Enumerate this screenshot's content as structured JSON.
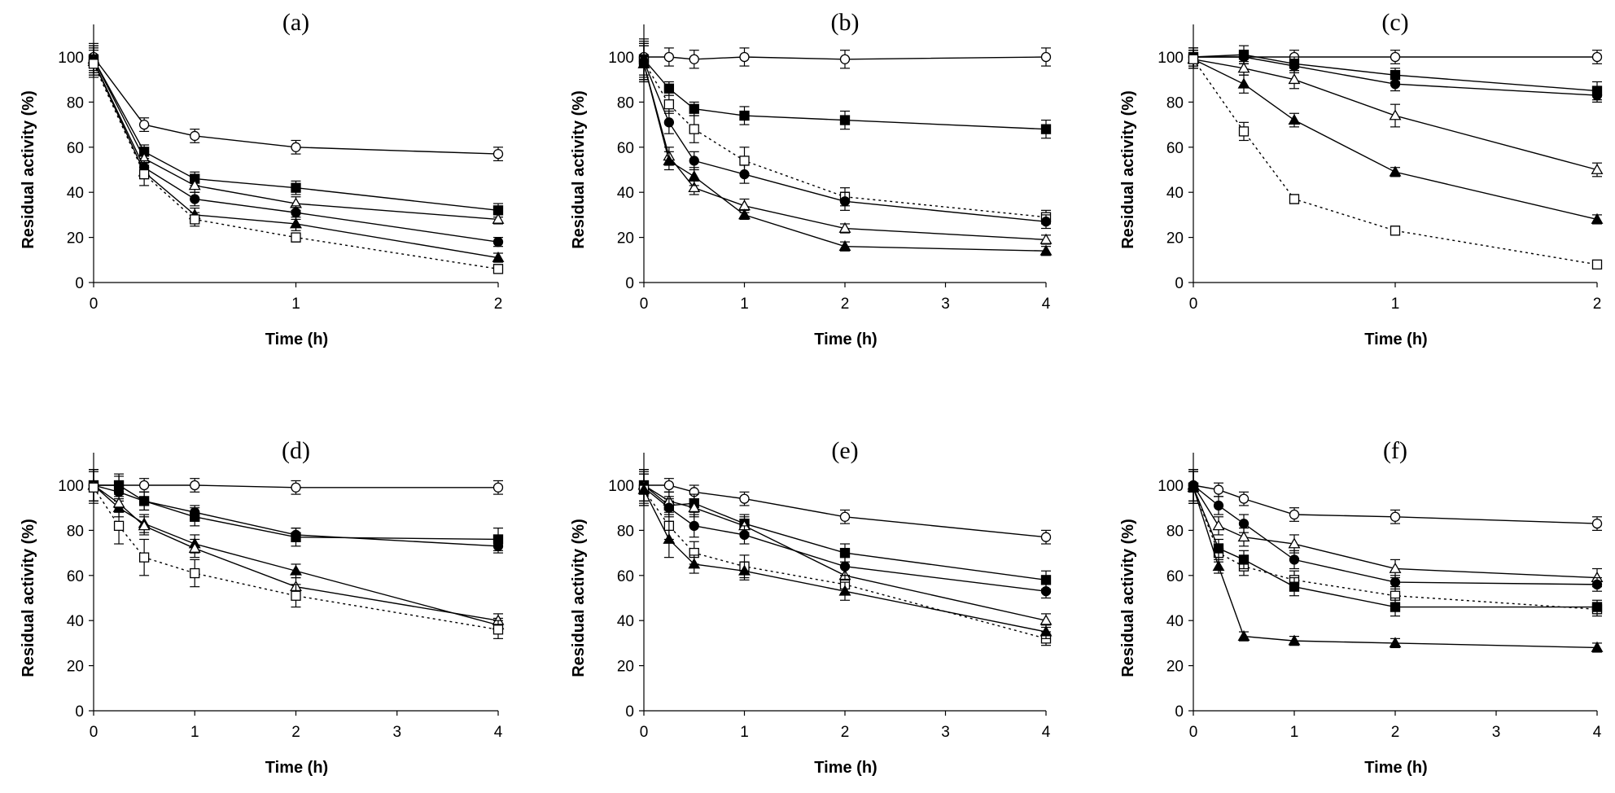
{
  "chart_data": [
    {
      "type": "line",
      "title": "(a)",
      "xlabel": "Time (h)",
      "ylabel": "Residual activity (%)",
      "xlim": [
        0,
        2
      ],
      "ylim": [
        0,
        100
      ],
      "xticks": [
        0,
        1,
        2
      ],
      "yticks": [
        0,
        20,
        40,
        60,
        80,
        100
      ],
      "x": [
        0,
        0.25,
        0.5,
        1,
        2
      ],
      "series": [
        {
          "name": "open-circle",
          "marker": "circle-open",
          "dash": "solid",
          "values": [
            100,
            70,
            65,
            60,
            57
          ],
          "errors": [
            6,
            3,
            3,
            3,
            3
          ]
        },
        {
          "name": "filled-square",
          "marker": "square-filled",
          "dash": "solid",
          "values": [
            99,
            58,
            46,
            42,
            32
          ],
          "errors": [
            6,
            3,
            3,
            3,
            3
          ]
        },
        {
          "name": "open-triangle",
          "marker": "triangle-open",
          "dash": "solid",
          "values": [
            99,
            55,
            43,
            35,
            28
          ],
          "errors": [
            6,
            3,
            3,
            3,
            2
          ]
        },
        {
          "name": "filled-circle",
          "marker": "circle-filled",
          "dash": "solid",
          "values": [
            98,
            51,
            37,
            31,
            18
          ],
          "errors": [
            6,
            3,
            3,
            3,
            2
          ]
        },
        {
          "name": "filled-triangle",
          "marker": "triangle-filled",
          "dash": "solid",
          "values": [
            98,
            49,
            30,
            26,
            11
          ],
          "errors": [
            6,
            3,
            3,
            3,
            2
          ]
        },
        {
          "name": "open-square",
          "marker": "square-open",
          "dash": "dotted",
          "values": [
            97,
            48,
            28,
            20,
            6
          ],
          "errors": [
            6,
            5,
            3,
            2,
            2
          ]
        }
      ]
    },
    {
      "type": "line",
      "title": "(b)",
      "xlabel": "Time (h)",
      "ylabel": "Residual activity (%)",
      "xlim": [
        0,
        4
      ],
      "ylim": [
        0,
        100
      ],
      "xticks": [
        0,
        1,
        2,
        3,
        4
      ],
      "yticks": [
        0,
        20,
        40,
        60,
        80,
        100
      ],
      "x": [
        0,
        0.25,
        0.5,
        1,
        2,
        4
      ],
      "series": [
        {
          "name": "open-circle",
          "marker": "circle-open",
          "dash": "solid",
          "values": [
            100,
            100,
            99,
            100,
            99,
            100
          ],
          "errors": [
            8,
            4,
            4,
            4,
            4,
            4
          ]
        },
        {
          "name": "filled-square",
          "marker": "square-filled",
          "dash": "solid",
          "values": [
            99,
            86,
            77,
            74,
            72,
            68
          ],
          "errors": [
            8,
            3,
            3,
            4,
            4,
            4
          ]
        },
        {
          "name": "open-square",
          "marker": "square-open",
          "dash": "dotted",
          "values": [
            98,
            79,
            68,
            54,
            38,
            29
          ],
          "errors": [
            8,
            4,
            6,
            6,
            4,
            3
          ]
        },
        {
          "name": "filled-circle",
          "marker": "circle-filled",
          "dash": "solid",
          "values": [
            98,
            71,
            54,
            48,
            36,
            27
          ],
          "errors": [
            8,
            5,
            4,
            4,
            4,
            3
          ]
        },
        {
          "name": "open-triangle",
          "marker": "triangle-open",
          "dash": "solid",
          "values": [
            97,
            56,
            42,
            34,
            24,
            19
          ],
          "errors": [
            8,
            4,
            3,
            3,
            2,
            2
          ]
        },
        {
          "name": "filled-triangle",
          "marker": "triangle-filled",
          "dash": "solid",
          "values": [
            97,
            54,
            47,
            30,
            16,
            14
          ],
          "errors": [
            8,
            4,
            4,
            2,
            2,
            2
          ]
        }
      ]
    },
    {
      "type": "line",
      "title": "(c)",
      "xlabel": "Time (h)",
      "ylabel": "Residual activity (%)",
      "xlim": [
        0,
        2
      ],
      "ylim": [
        0,
        100
      ],
      "xticks": [
        0,
        1,
        2
      ],
      "yticks": [
        0,
        20,
        40,
        60,
        80,
        100
      ],
      "x": [
        0,
        0.25,
        0.5,
        1,
        2
      ],
      "series": [
        {
          "name": "open-circle",
          "marker": "circle-open",
          "dash": "solid",
          "values": [
            100,
            100,
            100,
            100,
            100
          ],
          "errors": [
            4,
            3,
            3,
            3,
            3
          ]
        },
        {
          "name": "filled-square",
          "marker": "square-filled",
          "dash": "solid",
          "values": [
            100,
            101,
            97,
            92,
            85
          ],
          "errors": [
            4,
            4,
            3,
            3,
            4
          ]
        },
        {
          "name": "filled-circle",
          "marker": "circle-filled",
          "dash": "solid",
          "values": [
            100,
            100,
            96,
            88,
            83
          ],
          "errors": [
            4,
            3,
            3,
            3,
            3
          ]
        },
        {
          "name": "open-triangle",
          "marker": "triangle-open",
          "dash": "solid",
          "values": [
            99,
            95,
            90,
            74,
            50
          ],
          "errors": [
            4,
            3,
            4,
            5,
            3
          ]
        },
        {
          "name": "filled-triangle",
          "marker": "triangle-filled",
          "dash": "solid",
          "values": [
            99,
            88,
            72,
            49,
            28
          ],
          "errors": [
            4,
            4,
            3,
            2,
            2
          ]
        },
        {
          "name": "open-square",
          "marker": "square-open",
          "dash": "dotted",
          "values": [
            99,
            67,
            37,
            23,
            8
          ],
          "errors": [
            4,
            4,
            2,
            2,
            1
          ]
        }
      ]
    },
    {
      "type": "line",
      "title": "(d)",
      "xlabel": "Time (h)",
      "ylabel": "Residual activity (%)",
      "xlim": [
        0,
        4
      ],
      "ylim": [
        0,
        100
      ],
      "xticks": [
        0,
        1,
        2,
        3,
        4
      ],
      "yticks": [
        0,
        20,
        40,
        60,
        80,
        100
      ],
      "x": [
        0,
        0.25,
        0.5,
        1,
        2,
        4
      ],
      "series": [
        {
          "name": "open-circle",
          "marker": "circle-open",
          "dash": "solid",
          "values": [
            100,
            100,
            100,
            100,
            99,
            99
          ],
          "errors": [
            7,
            4,
            3,
            3,
            3,
            3
          ]
        },
        {
          "name": "filled-square",
          "marker": "square-filled",
          "dash": "solid",
          "values": [
            100,
            100,
            93,
            86,
            77,
            76
          ],
          "errors": [
            7,
            5,
            4,
            4,
            4,
            5
          ]
        },
        {
          "name": "filled-circle",
          "marker": "circle-filled",
          "dash": "solid",
          "values": [
            100,
            97,
            93,
            88,
            78,
            73
          ],
          "errors": [
            7,
            4,
            4,
            3,
            3,
            3
          ]
        },
        {
          "name": "filled-triangle",
          "marker": "triangle-filled",
          "dash": "solid",
          "values": [
            100,
            90,
            83,
            74,
            62,
            38
          ],
          "errors": [
            7,
            4,
            4,
            4,
            3,
            3
          ]
        },
        {
          "name": "open-triangle",
          "marker": "triangle-open",
          "dash": "solid",
          "values": [
            100,
            92,
            82,
            72,
            55,
            40
          ],
          "errors": [
            7,
            4,
            4,
            4,
            4,
            3
          ]
        },
        {
          "name": "open-square",
          "marker": "square-open",
          "dash": "dotted",
          "values": [
            99,
            82,
            68,
            61,
            51,
            36
          ],
          "errors": [
            7,
            8,
            8,
            6,
            5,
            4
          ]
        }
      ]
    },
    {
      "type": "line",
      "title": "(e)",
      "xlabel": "Time (h)",
      "ylabel": "Residual activity (%)",
      "xlim": [
        0,
        4
      ],
      "ylim": [
        0,
        100
      ],
      "xticks": [
        0,
        1,
        2,
        3,
        4
      ],
      "yticks": [
        0,
        20,
        40,
        60,
        80,
        100
      ],
      "x": [
        0,
        0.25,
        0.5,
        1,
        2,
        4
      ],
      "series": [
        {
          "name": "open-circle",
          "marker": "circle-open",
          "dash": "solid",
          "values": [
            100,
            100,
            97,
            94,
            86,
            77
          ],
          "errors": [
            7,
            3,
            3,
            3,
            3,
            3
          ]
        },
        {
          "name": "filled-square",
          "marker": "square-filled",
          "dash": "solid",
          "values": [
            100,
            91,
            92,
            83,
            70,
            58
          ],
          "errors": [
            7,
            4,
            4,
            4,
            4,
            4
          ]
        },
        {
          "name": "open-triangle",
          "marker": "triangle-open",
          "dash": "solid",
          "values": [
            100,
            93,
            90,
            82,
            60,
            40
          ],
          "errors": [
            7,
            4,
            4,
            4,
            4,
            3
          ]
        },
        {
          "name": "filled-circle",
          "marker": "circle-filled",
          "dash": "solid",
          "values": [
            99,
            90,
            82,
            78,
            64,
            53
          ],
          "errors": [
            7,
            4,
            5,
            4,
            4,
            3
          ]
        },
        {
          "name": "open-square",
          "marker": "square-open",
          "dash": "dotted",
          "values": [
            98,
            82,
            70,
            64,
            56,
            32
          ],
          "errors": [
            7,
            6,
            5,
            5,
            4,
            3
          ]
        },
        {
          "name": "filled-triangle",
          "marker": "triangle-filled",
          "dash": "solid",
          "values": [
            98,
            76,
            65,
            62,
            53,
            35
          ],
          "errors": [
            7,
            8,
            4,
            4,
            4,
            3
          ]
        }
      ]
    },
    {
      "type": "line",
      "title": "(f)",
      "xlabel": "Time (h)",
      "ylabel": "Residual activity (%)",
      "xlim": [
        0,
        4
      ],
      "ylim": [
        0,
        100
      ],
      "xticks": [
        0,
        1,
        2,
        3,
        4
      ],
      "yticks": [
        0,
        20,
        40,
        60,
        80,
        100
      ],
      "x": [
        0,
        0.25,
        0.5,
        1,
        2,
        4
      ],
      "series": [
        {
          "name": "open-circle",
          "marker": "circle-open",
          "dash": "solid",
          "values": [
            100,
            98,
            94,
            87,
            86,
            83
          ],
          "errors": [
            7,
            3,
            3,
            3,
            3,
            3
          ]
        },
        {
          "name": "open-triangle",
          "marker": "triangle-open",
          "dash": "solid",
          "values": [
            100,
            82,
            77,
            74,
            63,
            59
          ],
          "errors": [
            7,
            4,
            4,
            4,
            4,
            4
          ]
        },
        {
          "name": "filled-circle",
          "marker": "circle-filled",
          "dash": "solid",
          "values": [
            100,
            91,
            83,
            67,
            57,
            56
          ],
          "errors": [
            7,
            4,
            4,
            4,
            3,
            3
          ]
        },
        {
          "name": "open-square",
          "marker": "square-open",
          "dash": "dotted",
          "values": [
            99,
            70,
            64,
            58,
            51,
            45
          ],
          "errors": [
            7,
            4,
            4,
            4,
            4,
            3
          ]
        },
        {
          "name": "filled-square",
          "marker": "square-filled",
          "dash": "solid",
          "values": [
            99,
            72,
            67,
            55,
            46,
            46
          ],
          "errors": [
            7,
            4,
            4,
            4,
            4,
            3
          ]
        },
        {
          "name": "filled-triangle",
          "marker": "triangle-filled",
          "dash": "solid",
          "values": [
            99,
            64,
            33,
            31,
            30,
            28
          ],
          "errors": [
            7,
            3,
            2,
            2,
            2,
            2
          ]
        }
      ]
    }
  ]
}
